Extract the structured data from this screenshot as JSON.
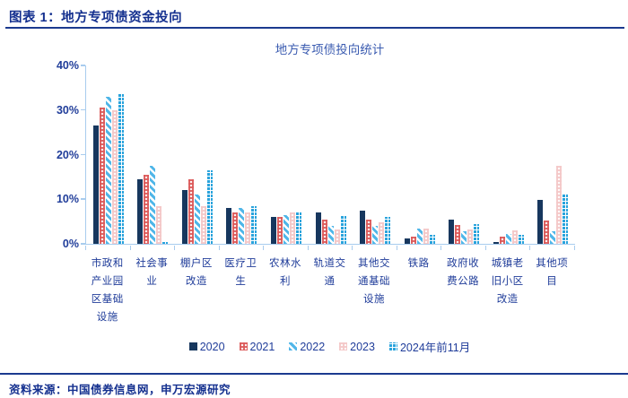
{
  "header": {
    "title": "图表 1：地方专项债资金投向"
  },
  "chart_data": {
    "type": "bar",
    "title": "地方专项债投向统计",
    "categories": [
      "市政和产业园区基础设施",
      "社会事业",
      "棚户区改造",
      "医疗卫生",
      "农林水利",
      "轨道交通",
      "其他交通基础设施",
      "铁路",
      "政府收费公路",
      "城镇老旧小区改造",
      "其他项目"
    ],
    "series": [
      {
        "name": "2020",
        "color": "#17375e",
        "pattern": "solid",
        "values": [
          26.5,
          14.5,
          12.0,
          8.0,
          6.0,
          7.0,
          7.5,
          1.2,
          5.4,
          0.4,
          9.8
        ]
      },
      {
        "name": "2021",
        "color": "#dc5b5b",
        "pattern": "dots",
        "values": [
          30.5,
          15.5,
          14.5,
          7.0,
          6.0,
          5.5,
          5.5,
          1.6,
          4.2,
          1.7,
          5.2
        ]
      },
      {
        "name": "2022",
        "color": "#4fb6e8",
        "pattern": "diagonal",
        "values": [
          33.0,
          17.5,
          11.0,
          8.0,
          6.5,
          4.0,
          4.0,
          3.4,
          2.8,
          2.2,
          2.9
        ]
      },
      {
        "name": "2023",
        "color": "#f4c8c8",
        "pattern": "dots",
        "values": [
          30.0,
          8.5,
          8.5,
          7.0,
          7.0,
          3.3,
          4.8,
          3.4,
          3.2,
          3.1,
          17.5
        ]
      },
      {
        "name": "2024年前11月",
        "color": "#29a3dc",
        "pattern": "bricks",
        "values": [
          33.5,
          0.4,
          16.5,
          8.5,
          7.0,
          6.4,
          6.0,
          2.0,
          4.4,
          2.1,
          11.1
        ]
      }
    ],
    "xlabel": "",
    "ylabel": "",
    "ylim": [
      0,
      40
    ],
    "yticks": [
      "0%",
      "10%",
      "20%",
      "30%",
      "40%"
    ],
    "grid": false,
    "legend_position": "bottom"
  },
  "footer": {
    "source": "资料来源：中国债券信息网，申万宏源研究"
  }
}
